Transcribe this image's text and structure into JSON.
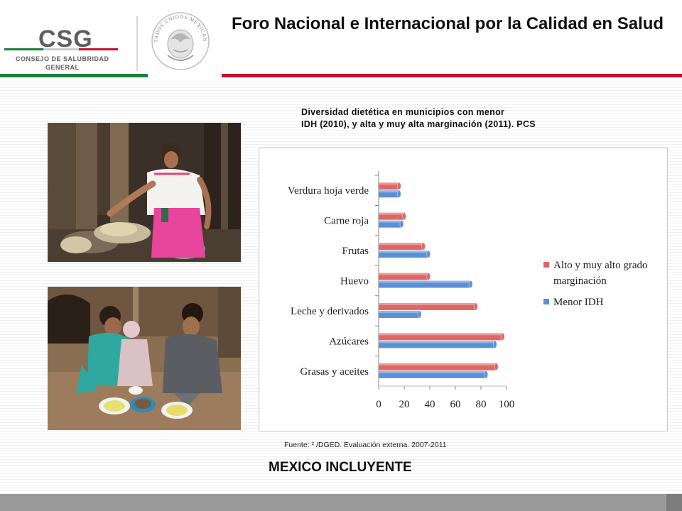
{
  "header": {
    "title": "Foro Nacional e Internacional por la Calidad en Salud",
    "logo": {
      "mark": "CSG",
      "line1": "CONSEJO DE SALUBRIDAD",
      "line2": "GENERAL"
    },
    "seal_text": "ESTADOS UNIDOS MEXICANOS",
    "colors": {
      "green": "#1a7f3c",
      "red": "#c8102e"
    }
  },
  "photos": [
    {
      "icon": "woman-cooking-photo"
    },
    {
      "icon": "children-eating-photo"
    }
  ],
  "chart_caption": {
    "line1": "Diversidad dietética en municipios con menor",
    "line2": "IDH (2010), y alta y muy alta marginación (2011). PCS"
  },
  "chart_data": {
    "type": "bar",
    "orientation": "horizontal",
    "categories": [
      "Verdura hoja verde",
      "Carne roja",
      "Frutas",
      "Huevo",
      "Leche y derivados",
      "Azúcares",
      "Grasas y aceites"
    ],
    "series": [
      {
        "name": "Alto y muy alto grado marginación",
        "color": "#e06666",
        "values": [
          16,
          20,
          35,
          39,
          76,
          97,
          92
        ]
      },
      {
        "name": "Menor IDH",
        "color": "#5b8fd6",
        "values": [
          16,
          18,
          39,
          72,
          32,
          91,
          84
        ]
      }
    ],
    "legend": {
      "entries": [
        {
          "line1": "Alto y muy alto grado",
          "line2": "marginación"
        },
        {
          "line1": "Menor IDH",
          "line2": ""
        }
      ],
      "placement": "right"
    },
    "xlim": [
      0,
      100
    ],
    "xticks": [
      "0",
      "20",
      "40",
      "60",
      "80",
      "100"
    ],
    "grid": false
  },
  "source": "Fuente: ² /DGED. Evaluación externa. 2007-2011",
  "footer": {
    "title": "MEXICO INCLUYENTE"
  }
}
